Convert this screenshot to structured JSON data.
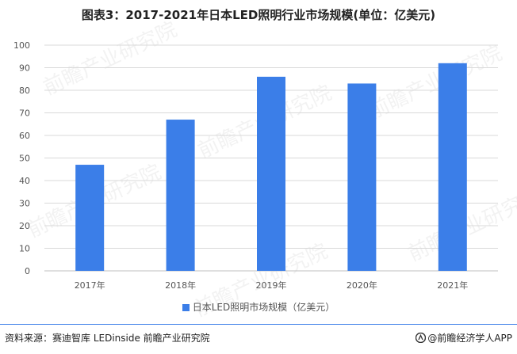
{
  "title": "图表3：2017-2021年日本LED照明行业市场规模(单位：亿美元)",
  "chart_data": {
    "type": "bar",
    "categories": [
      "2017年",
      "2018年",
      "2019年",
      "2020年",
      "2021年"
    ],
    "series": [
      {
        "name": "日本LED照明市场规模（亿美元）",
        "values": [
          47,
          67,
          86,
          83,
          92
        ]
      }
    ],
    "ylim": [
      0,
      100
    ],
    "yticks": [
      0,
      10,
      20,
      30,
      40,
      50,
      60,
      70,
      80,
      90,
      100
    ],
    "grid": true,
    "legend": "bottom",
    "bar_color": "#3b7ee8",
    "grid_color": "#d9d9d9"
  },
  "footer": {
    "source": "资料来源：赛迪智库 LEDinside 前瞻产业研究院",
    "brand": "@前瞻经济学人APP",
    "brand_icon": "qianzhan-logo-icon"
  },
  "watermark_text": "前瞻产业研究院"
}
